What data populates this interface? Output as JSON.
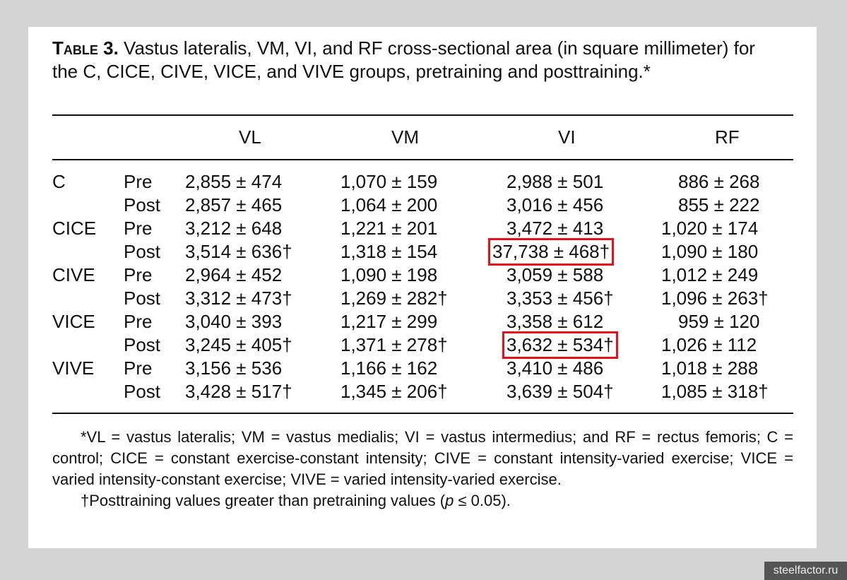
{
  "caption": {
    "label": "Table 3.",
    "text": "Vastus lateralis, VM, VI, and RF cross-sectional area (in square millimeter) for the C, CICE, CIVE, VICE, and VIVE groups, pretraining and posttraining.*"
  },
  "table": {
    "header": [
      "VL",
      "VM",
      "VI",
      "RF"
    ],
    "rows": [
      [
        "C",
        "Pre",
        "2,855 ± 474",
        "1,070 ± 159",
        "2,988 ± 501",
        "886 ± 268"
      ],
      [
        null,
        "Post",
        "2,857 ± 465",
        "1,064 ± 200",
        "3,016 ± 456",
        "855 ± 222"
      ],
      [
        "CICE",
        "Pre",
        "3,212 ± 648",
        "1,221 ± 201",
        "3,472 ± 413",
        "1,020 ± 174"
      ],
      [
        null,
        "Post",
        "3,514 ± 636†",
        "1,318 ± 154",
        "37,738 ± 468†",
        "1,090 ± 180"
      ],
      [
        "CIVE",
        "Pre",
        "2,964 ± 452",
        "1,090 ± 198",
        "3,059 ± 588",
        "1,012 ± 249"
      ],
      [
        null,
        "Post",
        "3,312 ± 473†",
        "1,269 ± 282†",
        "3,353 ± 456†",
        "1,096 ± 263†"
      ],
      [
        "VICE",
        "Pre",
        "3,040 ± 393",
        "1,217 ± 299",
        "3,358 ± 612",
        "959 ± 120"
      ],
      [
        null,
        "Post",
        "3,245 ± 405†",
        "1,371 ± 278†",
        "3,632 ± 534†",
        "1,026 ± 112"
      ],
      [
        "VIVE",
        "Pre",
        "3,156 ± 536",
        "1,166 ± 162",
        "3,410 ± 486",
        "1,018 ± 288"
      ],
      [
        null,
        "Post",
        "3,428 ± 517†",
        "1,345 ± 206†",
        "3,639 ± 504†",
        "1,085 ± 318†"
      ]
    ]
  },
  "footnotes": {
    "abbreviations": "*VL = vastus lateralis; VM = vastus medialis; VI = vastus intermedius; and RF = rectus femoris; C = control; CICE = constant exercise-constant intensity; CIVE = constant intensity-varied exercise; VICE = varied intensity-constant exercise; VIVE = varied intensity-varied exercise.",
    "significance": {
      "before": "†Posttraining values greater than pretraining values (",
      "italic": "p",
      "after": " ≤ 0.05)."
    }
  },
  "watermark": "steelfactor.ru"
}
